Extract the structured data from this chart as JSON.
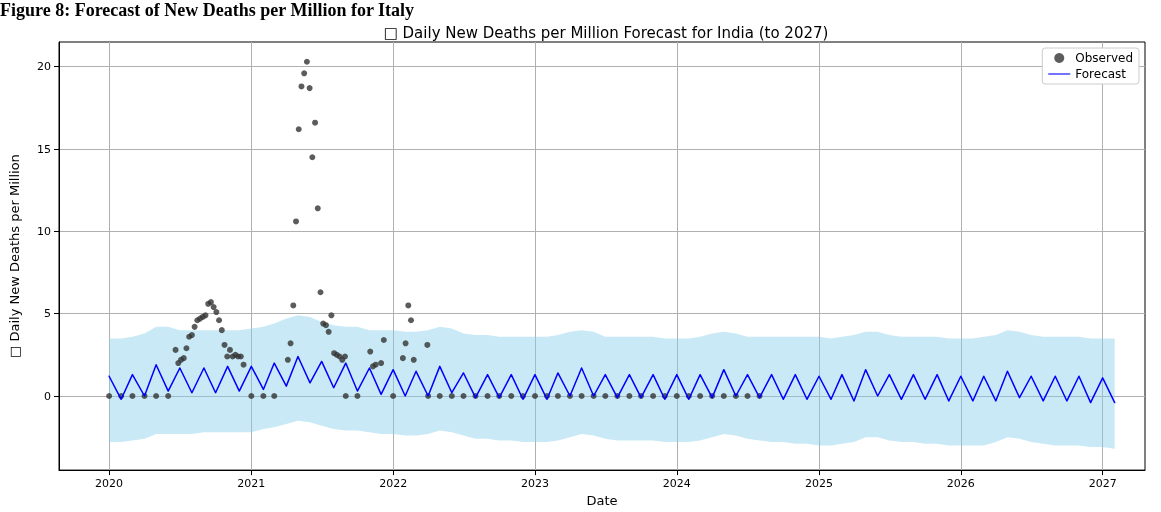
{
  "chart_data": {
    "type": "line",
    "title": "□ Daily New Deaths per Million Forecast for India (to 2027)",
    "xlabel": "Date",
    "ylabel": "□ Daily New Deaths per Million",
    "annotations": [
      "Figure 8: Forecast of New Deaths per Million for Italy"
    ],
    "xlim": [
      "2019-08-25",
      "2027-04-20"
    ],
    "xticks": [
      "2020",
      "2021",
      "2022",
      "2023",
      "2024",
      "2025",
      "2026",
      "2027"
    ],
    "ylim": [
      -4.5,
      21.5
    ],
    "yticks": [
      0,
      5,
      10,
      15,
      20
    ],
    "grid": true,
    "legend": "top right",
    "line_style": "solid",
    "series": [
      {
        "name": "Observed",
        "type": "scatter",
        "marker": "circle",
        "color": "#333333",
        "x": [
          "2020-06-20",
          "2020-06-27",
          "2020-07-04",
          "2020-07-11",
          "2020-07-18",
          "2020-07-25",
          "2020-08-01",
          "2020-08-08",
          "2020-08-15",
          "2020-08-22",
          "2020-08-29",
          "2020-09-05",
          "2020-09-12",
          "2020-09-19",
          "2020-09-26",
          "2020-10-03",
          "2020-10-10",
          "2020-10-17",
          "2020-10-24",
          "2020-10-31",
          "2020-11-07",
          "2020-11-14",
          "2020-11-21",
          "2020-11-28",
          "2020-12-05",
          "2020-12-12",
          "2021-04-05",
          "2021-04-12",
          "2021-04-19",
          "2021-04-26",
          "2021-05-03",
          "2021-05-10",
          "2021-05-17",
          "2021-05-24",
          "2021-05-31",
          "2021-06-07",
          "2021-06-14",
          "2021-06-21",
          "2021-06-28",
          "2021-07-05",
          "2021-07-12",
          "2021-07-19",
          "2021-07-26",
          "2021-08-02",
          "2021-08-09",
          "2021-08-16",
          "2021-08-23",
          "2021-08-30",
          "2021-11-03",
          "2021-11-10",
          "2021-11-17",
          "2021-12-01",
          "2021-12-08",
          "2022-01-26",
          "2022-02-02",
          "2022-02-09",
          "2022-02-16",
          "2022-02-23",
          "2022-03-30",
          "2020-01-01",
          "2020-02-01",
          "2020-03-01",
          "2020-04-01",
          "2020-05-01",
          "2020-06-01",
          "2021-01-01",
          "2021-02-01",
          "2021-03-01",
          "2021-09-01",
          "2021-10-01",
          "2022-01-01",
          "2022-04-01",
          "2022-05-01",
          "2022-06-01",
          "2022-07-01",
          "2022-08-01",
          "2022-09-01",
          "2022-10-01",
          "2022-11-01",
          "2022-12-01",
          "2023-01-01",
          "2023-02-01",
          "2023-03-01",
          "2023-04-01",
          "2023-05-01",
          "2023-06-01",
          "2023-07-01",
          "2023-08-01",
          "2023-09-01",
          "2023-10-01",
          "2023-11-01",
          "2023-12-01",
          "2024-01-01",
          "2024-02-01",
          "2024-03-01",
          "2024-04-01",
          "2024-05-01",
          "2024-06-01",
          "2024-07-01",
          "2024-08-01"
        ],
        "values": [
          2.8,
          2.0,
          2.2,
          2.3,
          2.9,
          3.6,
          3.7,
          4.2,
          4.6,
          4.7,
          4.8,
          4.9,
          5.6,
          5.7,
          5.4,
          5.1,
          4.6,
          4.0,
          3.1,
          2.4,
          2.8,
          2.4,
          2.5,
          2.4,
          2.4,
          1.9,
          2.2,
          3.2,
          5.5,
          10.6,
          16.2,
          18.8,
          19.6,
          20.3,
          18.7,
          14.5,
          16.6,
          11.4,
          6.3,
          4.4,
          4.3,
          3.9,
          4.9,
          2.6,
          2.5,
          2.4,
          2.2,
          2.4,
          2.7,
          1.8,
          1.9,
          2.0,
          3.4,
          2.3,
          3.2,
          5.5,
          4.6,
          2.2,
          3.1,
          0,
          0,
          0,
          0,
          0,
          0,
          0,
          0,
          0,
          0,
          0,
          0,
          0,
          0,
          0,
          0,
          0,
          0,
          0,
          0,
          0,
          0,
          0,
          0,
          0,
          0,
          0,
          0,
          0,
          0,
          0,
          0,
          0,
          0,
          0,
          0,
          0,
          0,
          0,
          0,
          0
        ]
      },
      {
        "name": "Forecast",
        "marker": "none",
        "color": "#0000ff",
        "x": [
          "2020-01",
          "2020-02",
          "2020-03",
          "2020-04",
          "2020-05",
          "2020-06",
          "2020-07",
          "2020-08",
          "2020-09",
          "2020-10",
          "2020-11",
          "2020-12",
          "2021-01",
          "2021-02",
          "2021-03",
          "2021-04",
          "2021-05",
          "2021-06",
          "2021-07",
          "2021-08",
          "2021-09",
          "2021-10",
          "2021-11",
          "2021-12",
          "2022-01",
          "2022-02",
          "2022-03",
          "2022-04",
          "2022-05",
          "2022-06",
          "2022-07",
          "2022-08",
          "2022-09",
          "2022-10",
          "2022-11",
          "2022-12",
          "2023-01",
          "2023-02",
          "2023-03",
          "2023-04",
          "2023-05",
          "2023-06",
          "2023-07",
          "2023-08",
          "2023-09",
          "2023-10",
          "2023-11",
          "2023-12",
          "2024-01",
          "2024-02",
          "2024-03",
          "2024-04",
          "2024-05",
          "2024-06",
          "2024-07",
          "2024-08",
          "2024-09",
          "2024-10",
          "2024-11",
          "2024-12",
          "2025-01",
          "2025-02",
          "2025-03",
          "2025-04",
          "2025-05",
          "2025-06",
          "2025-07",
          "2025-08",
          "2025-09",
          "2025-10",
          "2025-11",
          "2025-12",
          "2026-01",
          "2026-02",
          "2026-03",
          "2026-04",
          "2026-05",
          "2026-06",
          "2026-07",
          "2026-08",
          "2026-09",
          "2026-10",
          "2026-11",
          "2026-12",
          "2027-01",
          "2027-02"
        ],
        "values": [
          1.2,
          -0.2,
          1.3,
          0.0,
          1.9,
          0.3,
          1.7,
          0.2,
          1.7,
          0.2,
          1.8,
          0.3,
          1.8,
          0.4,
          2.0,
          0.6,
          2.4,
          0.8,
          2.1,
          0.5,
          2.0,
          0.3,
          1.7,
          0.1,
          1.6,
          0.0,
          1.5,
          0.0,
          1.8,
          0.2,
          1.4,
          -0.1,
          1.3,
          -0.1,
          1.3,
          -0.2,
          1.3,
          -0.2,
          1.4,
          0.0,
          1.7,
          0.0,
          1.3,
          -0.1,
          1.3,
          -0.1,
          1.3,
          -0.2,
          1.3,
          -0.2,
          1.3,
          -0.1,
          1.6,
          0.0,
          1.3,
          -0.1,
          1.3,
          -0.2,
          1.3,
          -0.2,
          1.2,
          -0.2,
          1.3,
          -0.3,
          1.6,
          0.0,
          1.3,
          -0.2,
          1.3,
          -0.2,
          1.3,
          -0.3,
          1.2,
          -0.3,
          1.2,
          -0.3,
          1.5,
          -0.1,
          1.2,
          -0.3,
          1.2,
          -0.3,
          1.2,
          -0.4,
          1.1,
          -0.4
        ],
        "upper": [
          3.5,
          3.5,
          3.6,
          3.8,
          4.2,
          4.2,
          4.0,
          4.0,
          4.0,
          4.0,
          4.0,
          4.0,
          4.1,
          4.2,
          4.4,
          4.7,
          4.9,
          4.8,
          4.5,
          4.3,
          4.2,
          4.2,
          4.0,
          4.0,
          4.0,
          3.9,
          3.9,
          4.0,
          4.2,
          4.1,
          3.8,
          3.7,
          3.7,
          3.6,
          3.6,
          3.6,
          3.6,
          3.6,
          3.7,
          3.9,
          4.0,
          3.9,
          3.6,
          3.6,
          3.6,
          3.6,
          3.6,
          3.5,
          3.5,
          3.5,
          3.6,
          3.8,
          3.9,
          3.8,
          3.6,
          3.6,
          3.6,
          3.6,
          3.6,
          3.6,
          3.6,
          3.5,
          3.6,
          3.7,
          3.9,
          3.9,
          3.7,
          3.6,
          3.6,
          3.6,
          3.6,
          3.5,
          3.5,
          3.5,
          3.6,
          3.7,
          4.0,
          3.9,
          3.7,
          3.6,
          3.6,
          3.6,
          3.6,
          3.5,
          3.5,
          3.5
        ],
        "lower": [
          -2.8,
          -2.8,
          -2.7,
          -2.6,
          -2.3,
          -2.3,
          -2.3,
          -2.3,
          -2.2,
          -2.2,
          -2.2,
          -2.2,
          -2.2,
          -2.0,
          -1.9,
          -1.7,
          -1.5,
          -1.6,
          -1.8,
          -2.0,
          -2.1,
          -2.1,
          -2.2,
          -2.3,
          -2.3,
          -2.4,
          -2.4,
          -2.3,
          -2.1,
          -2.2,
          -2.4,
          -2.6,
          -2.6,
          -2.7,
          -2.7,
          -2.8,
          -2.8,
          -2.8,
          -2.7,
          -2.5,
          -2.3,
          -2.4,
          -2.6,
          -2.7,
          -2.7,
          -2.7,
          -2.7,
          -2.8,
          -2.8,
          -2.8,
          -2.7,
          -2.5,
          -2.3,
          -2.4,
          -2.6,
          -2.7,
          -2.8,
          -2.8,
          -2.9,
          -2.9,
          -3.0,
          -3.0,
          -2.9,
          -2.8,
          -2.5,
          -2.5,
          -2.7,
          -2.8,
          -2.8,
          -2.9,
          -2.9,
          -3.0,
          -3.0,
          -3.0,
          -3.0,
          -2.8,
          -2.5,
          -2.6,
          -2.8,
          -2.9,
          -3.0,
          -3.0,
          -3.0,
          -3.1,
          -3.1,
          -3.2
        ]
      }
    ]
  }
}
